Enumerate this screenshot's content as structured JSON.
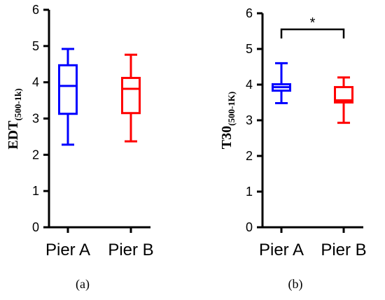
{
  "chart_data": [
    {
      "type": "box",
      "panel_label": "(a)",
      "ylabel": "EDT",
      "ylabel_sub": "(500-1k)",
      "ylim": [
        0,
        6
      ],
      "yticks": [
        "0",
        "1",
        "2",
        "3",
        "4",
        "5",
        "6"
      ],
      "categories": [
        "Pier A",
        "Pier B"
      ],
      "series": [
        {
          "min": 2.28,
          "q1": 3.13,
          "median": 3.9,
          "q3": 4.47,
          "max": 4.92,
          "color": "#0000ff"
        },
        {
          "min": 2.37,
          "q1": 3.15,
          "median": 3.82,
          "q3": 4.12,
          "max": 4.76,
          "color": "#ff0000"
        }
      ]
    },
    {
      "type": "box",
      "panel_label": "(b)",
      "ylabel": "T30",
      "ylabel_sub": "(500-1K)",
      "ylim": [
        0,
        6
      ],
      "yticks": [
        "0",
        "1",
        "2",
        "3",
        "4",
        "5",
        "6"
      ],
      "categories": [
        "Pier A",
        "Pier B"
      ],
      "series": [
        {
          "min": 3.48,
          "q1": 3.83,
          "median": 3.93,
          "q3": 4.01,
          "max": 4.6,
          "color": "#0000ff"
        },
        {
          "min": 2.93,
          "q1": 3.5,
          "median": 3.56,
          "q3": 3.93,
          "max": 4.2,
          "color": "#ff0000"
        }
      ],
      "significance": {
        "label": "*",
        "between": [
          "Pier A",
          "Pier B"
        ],
        "y": 5.55
      }
    }
  ]
}
